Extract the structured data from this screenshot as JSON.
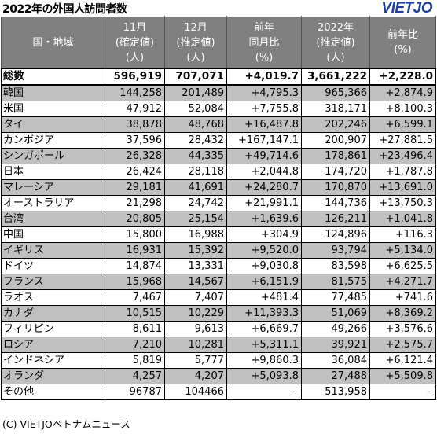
{
  "title": "2022年の外国人訪問者数",
  "logo": "VIETJO",
  "headers": [
    [
      "国・地域"
    ],
    [
      "11月",
      "(確定値)",
      "(人)"
    ],
    [
      "12月",
      "(推定値)",
      "(人)"
    ],
    [
      "前年",
      "同月比",
      "(%)"
    ],
    [
      "2022年",
      "(推定値)",
      "(人)"
    ],
    [
      "前年比",
      "(%)"
    ]
  ],
  "rows": [
    {
      "name": "総数",
      "nov": "596,919",
      "dec": "707,071",
      "mom": "+4,019.7",
      "year": "3,661,222",
      "yoy": "+2,228.0"
    },
    {
      "name": "韓国",
      "nov": "144,258",
      "dec": "201,489",
      "mom": "+4,795.3",
      "year": "965,366",
      "yoy": "+2,874.9"
    },
    {
      "name": "米国",
      "nov": "47,912",
      "dec": "52,084",
      "mom": "+7,755.8",
      "year": "318,171",
      "yoy": "+8,100.3"
    },
    {
      "name": "タイ",
      "nov": "38,878",
      "dec": "48,768",
      "mom": "+16,487.8",
      "year": "202,246",
      "yoy": "+6,599.1"
    },
    {
      "name": "カンボジア",
      "nov": "37,596",
      "dec": "28,432",
      "mom": "+167,147.1",
      "year": "200,907",
      "yoy": "+27,881.5"
    },
    {
      "name": "シンガポール",
      "nov": "26,328",
      "dec": "44,335",
      "mom": "+49,714.6",
      "year": "178,861",
      "yoy": "+23,496.4"
    },
    {
      "name": "日本",
      "nov": "26,424",
      "dec": "28,118",
      "mom": "+2,044.8",
      "year": "174,720",
      "yoy": "+1,787.8"
    },
    {
      "name": "マレーシア",
      "nov": "29,181",
      "dec": "41,691",
      "mom": "+24,280.7",
      "year": "170,870",
      "yoy": "+13,691.0"
    },
    {
      "name": "オーストラリア",
      "nov": "21,298",
      "dec": "24,742",
      "mom": "+21,991.1",
      "year": "144,736",
      "yoy": "+13,750.3"
    },
    {
      "name": "台湾",
      "nov": "20,805",
      "dec": "25,154",
      "mom": "+1,639.6",
      "year": "126,211",
      "yoy": "+1,041.8"
    },
    {
      "name": "中国",
      "nov": "15,800",
      "dec": "16,988",
      "mom": "+304.9",
      "year": "124,896",
      "yoy": "+116.3"
    },
    {
      "name": "イギリス",
      "nov": "16,931",
      "dec": "15,392",
      "mom": "+9,520.0",
      "year": "93,794",
      "yoy": "+5,134.0"
    },
    {
      "name": "ドイツ",
      "nov": "14,874",
      "dec": "13,331",
      "mom": "+9,030.8",
      "year": "83,598",
      "yoy": "+6,625.5"
    },
    {
      "name": "フランス",
      "nov": "15,968",
      "dec": "14,567",
      "mom": "+6,151.9",
      "year": "81,575",
      "yoy": "+4,271.7"
    },
    {
      "name": "ラオス",
      "nov": "7,467",
      "dec": "7,407",
      "mom": "+481.4",
      "year": "77,485",
      "yoy": "+741.6"
    },
    {
      "name": "カナダ",
      "nov": "10,515",
      "dec": "10,229",
      "mom": "+11,393.3",
      "year": "51,069",
      "yoy": "+8,369.2"
    },
    {
      "name": "フィリピン",
      "nov": "8,611",
      "dec": "9,613",
      "mom": "+6,669.7",
      "year": "49,266",
      "yoy": "+3,576.6"
    },
    {
      "name": "ロシア",
      "nov": "7,210",
      "dec": "10,281",
      "mom": "+5,311.1",
      "year": "39,921",
      "yoy": "+2,575.7"
    },
    {
      "name": "インドネシア",
      "nov": "5,819",
      "dec": "5,777",
      "mom": "+9,860.3",
      "year": "36,084",
      "yoy": "+6,121.4"
    },
    {
      "name": "オランダ",
      "nov": "4,257",
      "dec": "4,207",
      "mom": "+5,093.8",
      "year": "27,488",
      "yoy": "+5,509.8"
    },
    {
      "name": "その他",
      "nov": "96787",
      "dec": "104466",
      "mom": "-",
      "year": "513,958",
      "yoy": "-"
    }
  ],
  "footer": "(C) VIETJOベトナムニュース"
}
